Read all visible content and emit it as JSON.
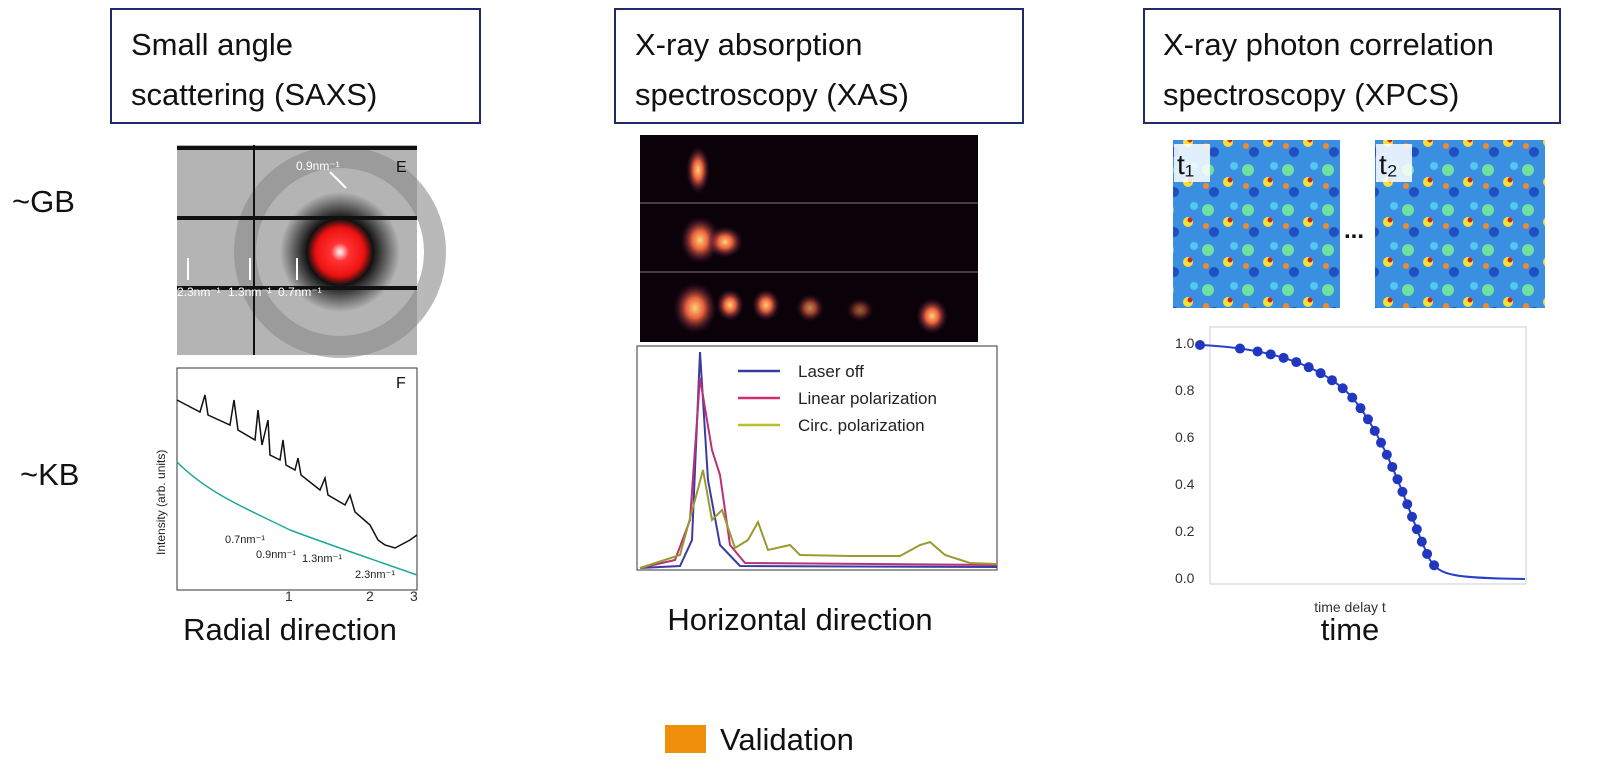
{
  "rows": [
    "~GB",
    "~KB"
  ],
  "panels": [
    {
      "title_lines": [
        "Small angle",
        "scattering (SAXS)"
      ],
      "image_labels": [
        "E",
        "0.9nm⁻¹",
        "2.3nm⁻¹",
        "1.3nm⁻¹",
        "0.7nm⁻¹"
      ],
      "plot_labels": [
        "F",
        "Intensity (arb. units)",
        "0.7nm⁻¹",
        "0.9nm⁻¹",
        "1.3nm⁻¹",
        "2.3nm⁻¹"
      ],
      "plot_ticks": [
        "1",
        "2",
        "3"
      ],
      "caption": "Radial direction"
    },
    {
      "title_lines": [
        "X-ray absorption",
        "spectroscopy (XAS)"
      ],
      "legend": [
        "Laser off",
        "Linear polarization",
        "Circ. polarization"
      ],
      "caption": "Horizontal direction"
    },
    {
      "title_lines": [
        "X-ray photon correlation",
        "spectroscopy (XPCS)"
      ],
      "frames": [
        "t₁",
        "t₂"
      ],
      "ellipsis": "...",
      "yticks": [
        "1.0",
        "0.8",
        "0.6",
        "0.4",
        "0.2",
        "0.0"
      ],
      "xlabel": "time delay t",
      "caption": "time"
    }
  ],
  "legend": {
    "label": "Validation"
  }
}
